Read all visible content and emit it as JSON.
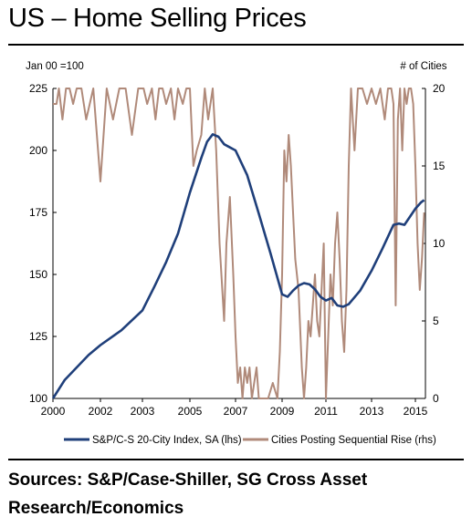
{
  "page": {
    "title": "US – Home Selling Prices",
    "sources": "Sources: S&P/Case-Shiller, SG Cross Asset Research/Economics"
  },
  "chart_data": {
    "type": "line",
    "y_left_unit": "Jan 00 =100",
    "y_right_unit": "# of Cities",
    "x_ticks": [
      "2000",
      "2002",
      "2003",
      "2005",
      "2007",
      "2009",
      "2011",
      "2013",
      "2015"
    ],
    "y_left_ticks": [
      "100",
      "125",
      "150",
      "175",
      "200",
      "225"
    ],
    "y_right_ticks": [
      "0",
      "5",
      "10",
      "15",
      "20"
    ],
    "y_left_lim": [
      100,
      225
    ],
    "y_right_lim": [
      0,
      20
    ],
    "x_lim": [
      2000.0,
      2015.5
    ],
    "grid": false,
    "legend_placement": "bottom",
    "colors": {
      "index": "#1f3f7a",
      "cities": "#b08a7a"
    },
    "series": [
      {
        "name": "S&P/C-S 20-City Index, SA (lhs)",
        "axis": "left",
        "x": [
          2000.0,
          2000.5,
          2001.0,
          2001.5,
          2002.0,
          2002.5,
          2003.0,
          2003.5,
          2004.0,
          2004.5,
          2005.0,
          2005.5,
          2005.75,
          2006.0,
          2006.25,
          2006.5,
          2007.0,
          2007.5,
          2008.0,
          2008.5,
          2009.0,
          2009.25,
          2009.5,
          2009.75,
          2010.0,
          2010.25,
          2010.5,
          2010.75,
          2011.0,
          2011.25,
          2011.5,
          2011.75,
          2012.0,
          2012.5,
          2013.0,
          2013.5,
          2014.0,
          2014.25,
          2014.5,
          2015.0,
          2015.25,
          2015.4
        ],
        "values": [
          100.0,
          107.5,
          112.5,
          117.5,
          121.5,
          127.5,
          135.5,
          145.0,
          155.0,
          166.5,
          183.0,
          197.0,
          203.5,
          206.5,
          205.5,
          202.5,
          200.0,
          190.0,
          174.5,
          158.5,
          142.0,
          141.0,
          143.5,
          145.5,
          146.5,
          146.0,
          144.0,
          141.0,
          139.5,
          140.5,
          137.5,
          137.0,
          138.0,
          143.5,
          151.5,
          160.5,
          170.0,
          170.5,
          170.0,
          176.5,
          179.0,
          180.0
        ]
      },
      {
        "name": "Cities Posting Sequential Rise (rhs)",
        "axis": "right",
        "x": [
          2000.0,
          2000.15,
          2000.25,
          2000.4,
          2000.55,
          2000.7,
          2000.85,
          2001.0,
          2001.2,
          2001.4,
          2001.55,
          2001.7,
          2001.85,
          2002.0,
          2002.15,
          2002.3,
          2002.45,
          2002.6,
          2002.75,
          2002.9,
          2003.05,
          2003.2,
          2003.4,
          2003.55,
          2003.7,
          2003.85,
          2004.0,
          2004.2,
          2004.35,
          2004.5,
          2004.7,
          2004.85,
          2005.0,
          2005.15,
          2005.3,
          2005.5,
          2005.65,
          2005.8,
          2006.0,
          2006.15,
          2006.3,
          2006.5,
          2006.6,
          2006.75,
          2006.9,
          2007.0,
          2007.1,
          2007.2,
          2007.3,
          2007.4,
          2007.5,
          2007.6,
          2007.7,
          2007.8,
          2007.9,
          2008.0,
          2008.2,
          2008.4,
          2008.6,
          2008.8,
          2008.9,
          2009.0,
          2009.1,
          2009.2,
          2009.3,
          2009.4,
          2009.5,
          2009.6,
          2009.75,
          2009.9,
          2010.0,
          2010.1,
          2010.2,
          2010.3,
          2010.4,
          2010.5,
          2010.6,
          2010.7,
          2010.8,
          2010.9,
          2011.0,
          2011.1,
          2011.2,
          2011.3,
          2011.4,
          2011.5,
          2011.6,
          2011.7,
          2011.8,
          2011.9,
          2012.0,
          2012.1,
          2012.25,
          2012.4,
          2012.6,
          2012.8,
          2013.0,
          2013.2,
          2013.4,
          2013.6,
          2013.75,
          2013.9,
          2014.0,
          2014.1,
          2014.2,
          2014.3,
          2014.4,
          2014.5,
          2014.6,
          2014.7,
          2014.8,
          2014.9,
          2015.0,
          2015.1,
          2015.2,
          2015.3,
          2015.4
        ],
        "values": [
          19,
          19,
          20,
          18,
          20,
          20,
          19,
          20,
          20,
          18,
          19,
          20,
          17,
          14,
          20,
          18,
          20,
          20,
          17,
          20,
          20,
          19,
          20,
          18,
          20,
          20,
          19,
          20,
          18,
          20,
          19,
          20,
          20,
          15,
          16,
          17,
          20,
          18,
          20,
          16,
          10,
          5,
          10,
          13,
          8,
          4,
          1,
          2,
          0,
          2,
          1,
          2,
          0,
          1,
          2,
          0,
          0,
          0,
          1,
          0,
          3,
          8,
          16,
          14,
          17,
          15,
          12,
          9,
          7,
          2,
          0,
          2,
          5,
          4,
          6,
          8,
          5,
          4,
          7,
          10,
          0,
          4,
          8,
          6,
          10,
          12,
          9,
          5,
          3,
          7,
          15,
          20,
          16,
          20,
          20,
          19,
          20,
          19,
          20,
          18,
          20,
          20,
          19,
          6,
          18,
          20,
          16,
          20,
          19,
          20,
          20,
          19,
          15,
          10,
          7,
          9,
          12
        ]
      }
    ]
  }
}
